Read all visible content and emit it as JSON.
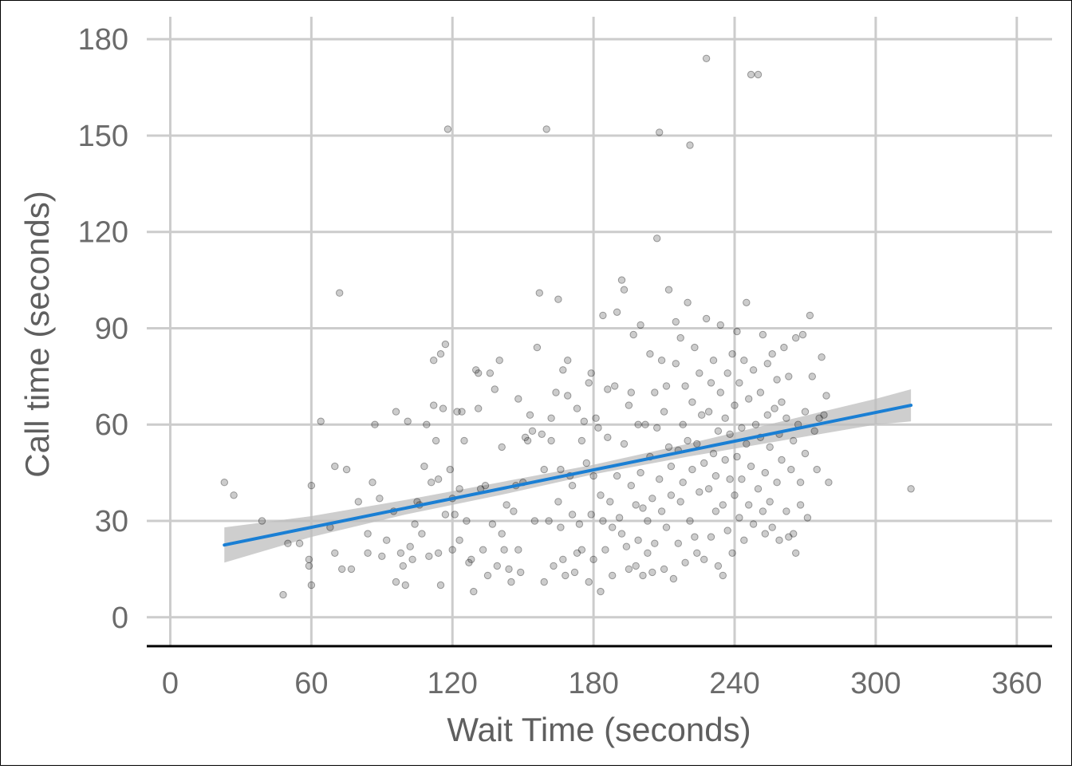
{
  "chart_data": {
    "type": "scatter",
    "xlabel": "Wait Time (seconds)",
    "ylabel": "Call time (seconds)",
    "xlim": [
      -10,
      375
    ],
    "ylim": [
      -9,
      187
    ],
    "x_ticks": [
      0,
      60,
      120,
      180,
      240,
      300,
      360
    ],
    "y_ticks": [
      0,
      30,
      60,
      90,
      120,
      150,
      180
    ],
    "grid": true,
    "point_color": "#000000",
    "point_alpha": 0.2,
    "trend_color": "#1a7fd4",
    "band_color": "#bdbdbd",
    "trend": {
      "type": "linear",
      "x": [
        23,
        315
      ],
      "y": [
        22.5,
        66
      ]
    },
    "confidence_band": {
      "x": [
        23,
        60,
        100,
        140,
        180,
        220,
        260,
        300,
        315
      ],
      "lower": [
        17,
        25,
        32,
        38,
        44.5,
        50,
        55,
        60,
        61
      ],
      "upper": [
        28,
        31.5,
        36.5,
        42,
        47.5,
        54,
        61,
        68,
        71
      ]
    },
    "points": [
      [
        23,
        42
      ],
      [
        27,
        38
      ],
      [
        39,
        30
      ],
      [
        48,
        7
      ],
      [
        50,
        23
      ],
      [
        55,
        23
      ],
      [
        59,
        18
      ],
      [
        59,
        16
      ],
      [
        60,
        10
      ],
      [
        60,
        41
      ],
      [
        64,
        61
      ],
      [
        68,
        28
      ],
      [
        70,
        20
      ],
      [
        70,
        47
      ],
      [
        72,
        101
      ],
      [
        73,
        15
      ],
      [
        75,
        46
      ],
      [
        77,
        15
      ],
      [
        80,
        36
      ],
      [
        84,
        20
      ],
      [
        84,
        26
      ],
      [
        86,
        42
      ],
      [
        87,
        60
      ],
      [
        89,
        37
      ],
      [
        90,
        19
      ],
      [
        92,
        24
      ],
      [
        95,
        33
      ],
      [
        96,
        11
      ],
      [
        96,
        64
      ],
      [
        98,
        20
      ],
      [
        99,
        16
      ],
      [
        100,
        10
      ],
      [
        101,
        61
      ],
      [
        102,
        22
      ],
      [
        103,
        18
      ],
      [
        104,
        29
      ],
      [
        105,
        36
      ],
      [
        106,
        35
      ],
      [
        107,
        26
      ],
      [
        108,
        47
      ],
      [
        109,
        60
      ],
      [
        110,
        19
      ],
      [
        111,
        42
      ],
      [
        112,
        80
      ],
      [
        112,
        66
      ],
      [
        113,
        55
      ],
      [
        114,
        43
      ],
      [
        114,
        20
      ],
      [
        115,
        10
      ],
      [
        115,
        82
      ],
      [
        116,
        65
      ],
      [
        117,
        32
      ],
      [
        117,
        85
      ],
      [
        118,
        152
      ],
      [
        119,
        46
      ],
      [
        120,
        21
      ],
      [
        120,
        37
      ],
      [
        121,
        32
      ],
      [
        122,
        64
      ],
      [
        123,
        40
      ],
      [
        123,
        24
      ],
      [
        124,
        64
      ],
      [
        125,
        55
      ],
      [
        126,
        30
      ],
      [
        127,
        17
      ],
      [
        128,
        18
      ],
      [
        129,
        8
      ],
      [
        130,
        77
      ],
      [
        131,
        76
      ],
      [
        131,
        65
      ],
      [
        132,
        40
      ],
      [
        133,
        21
      ],
      [
        134,
        41
      ],
      [
        135,
        13
      ],
      [
        136,
        76
      ],
      [
        137,
        29
      ],
      [
        138,
        71
      ],
      [
        139,
        16
      ],
      [
        140,
        80
      ],
      [
        141,
        53
      ],
      [
        141,
        26
      ],
      [
        142,
        21
      ],
      [
        143,
        35
      ],
      [
        144,
        15
      ],
      [
        145,
        11
      ],
      [
        146,
        33
      ],
      [
        147,
        41
      ],
      [
        148,
        21
      ],
      [
        148,
        68
      ],
      [
        149,
        14
      ],
      [
        150,
        42
      ],
      [
        151,
        56
      ],
      [
        152,
        55
      ],
      [
        153,
        63
      ],
      [
        154,
        58
      ],
      [
        155,
        30
      ],
      [
        156,
        84
      ],
      [
        157,
        101
      ],
      [
        158,
        57
      ],
      [
        159,
        46
      ],
      [
        159,
        11
      ],
      [
        160,
        152
      ],
      [
        161,
        30
      ],
      [
        162,
        55
      ],
      [
        162,
        62
      ],
      [
        163,
        16
      ],
      [
        164,
        70
      ],
      [
        165,
        36
      ],
      [
        165,
        99
      ],
      [
        166,
        28
      ],
      [
        166,
        46
      ],
      [
        167,
        18
      ],
      [
        167,
        77
      ],
      [
        168,
        13
      ],
      [
        169,
        80
      ],
      [
        169,
        69
      ],
      [
        170,
        44
      ],
      [
        171,
        41
      ],
      [
        171,
        32
      ],
      [
        172,
        14
      ],
      [
        173,
        20
      ],
      [
        173,
        65
      ],
      [
        174,
        29
      ],
      [
        175,
        21
      ],
      [
        175,
        55
      ],
      [
        176,
        61
      ],
      [
        177,
        48
      ],
      [
        178,
        73
      ],
      [
        178,
        11
      ],
      [
        179,
        76
      ],
      [
        179,
        32
      ],
      [
        180,
        44
      ],
      [
        180,
        18
      ],
      [
        181,
        62
      ],
      [
        182,
        59
      ],
      [
        183,
        38
      ],
      [
        183,
        8
      ],
      [
        184,
        94
      ],
      [
        184,
        30
      ],
      [
        185,
        21
      ],
      [
        186,
        71
      ],
      [
        186,
        56
      ],
      [
        187,
        36
      ],
      [
        188,
        28
      ],
      [
        188,
        13
      ],
      [
        189,
        72
      ],
      [
        190,
        44
      ],
      [
        190,
        95
      ],
      [
        191,
        31
      ],
      [
        192,
        26
      ],
      [
        192,
        105
      ],
      [
        193,
        102
      ],
      [
        193,
        54
      ],
      [
        194,
        22
      ],
      [
        195,
        66
      ],
      [
        195,
        15
      ],
      [
        196,
        70
      ],
      [
        196,
        41
      ],
      [
        197,
        88
      ],
      [
        198,
        16
      ],
      [
        198,
        35
      ],
      [
        199,
        60
      ],
      [
        199,
        24
      ],
      [
        200,
        45
      ],
      [
        200,
        91
      ],
      [
        201,
        34
      ],
      [
        201,
        13
      ],
      [
        202,
        60
      ],
      [
        203,
        20
      ],
      [
        203,
        30
      ],
      [
        204,
        82
      ],
      [
        204,
        50
      ],
      [
        205,
        37
      ],
      [
        205,
        14
      ],
      [
        206,
        70
      ],
      [
        206,
        23
      ],
      [
        207,
        118
      ],
      [
        207,
        59
      ],
      [
        208,
        151
      ],
      [
        208,
        43
      ],
      [
        209,
        33
      ],
      [
        209,
        80
      ],
      [
        210,
        15
      ],
      [
        210,
        64
      ],
      [
        211,
        28
      ],
      [
        211,
        72
      ],
      [
        212,
        53
      ],
      [
        212,
        102
      ],
      [
        213,
        47
      ],
      [
        213,
        38
      ],
      [
        214,
        12
      ],
      [
        215,
        79
      ],
      [
        215,
        92
      ],
      [
        216,
        52
      ],
      [
        216,
        23
      ],
      [
        217,
        36
      ],
      [
        217,
        87
      ],
      [
        218,
        60
      ],
      [
        218,
        42
      ],
      [
        219,
        72
      ],
      [
        219,
        17
      ],
      [
        220,
        55
      ],
      [
        220,
        98
      ],
      [
        221,
        30
      ],
      [
        221,
        147
      ],
      [
        222,
        67
      ],
      [
        222,
        46
      ],
      [
        223,
        84
      ],
      [
        223,
        25
      ],
      [
        224,
        54
      ],
      [
        224,
        20
      ],
      [
        225,
        76
      ],
      [
        225,
        39
      ],
      [
        226,
        63
      ],
      [
        227,
        48
      ],
      [
        227,
        18
      ],
      [
        228,
        174
      ],
      [
        228,
        93
      ],
      [
        229,
        40
      ],
      [
        229,
        64
      ],
      [
        230,
        25
      ],
      [
        230,
        73
      ],
      [
        231,
        51
      ],
      [
        231,
        80
      ],
      [
        232,
        33
      ],
      [
        232,
        44
      ],
      [
        233,
        58
      ],
      [
        233,
        16
      ],
      [
        234,
        91
      ],
      [
        234,
        70
      ],
      [
        235,
        35
      ],
      [
        235,
        13
      ],
      [
        236,
        62
      ],
      [
        236,
        49
      ],
      [
        237,
        76
      ],
      [
        237,
        27
      ],
      [
        238,
        43
      ],
      [
        238,
        57
      ],
      [
        239,
        82
      ],
      [
        239,
        20
      ],
      [
        240,
        66
      ],
      [
        240,
        38
      ],
      [
        241,
        50
      ],
      [
        241,
        89
      ],
      [
        242,
        31
      ],
      [
        242,
        73
      ],
      [
        243,
        43
      ],
      [
        243,
        59
      ],
      [
        244,
        80
      ],
      [
        244,
        24
      ],
      [
        245,
        98
      ],
      [
        245,
        54
      ],
      [
        246,
        35
      ],
      [
        246,
        68
      ],
      [
        247,
        169
      ],
      [
        247,
        47
      ],
      [
        248,
        77
      ],
      [
        248,
        29
      ],
      [
        249,
        60
      ],
      [
        250,
        169
      ],
      [
        250,
        40
      ],
      [
        251,
        56
      ],
      [
        251,
        70
      ],
      [
        252,
        88
      ],
      [
        252,
        33
      ],
      [
        253,
        45
      ],
      [
        253,
        26
      ],
      [
        254,
        63
      ],
      [
        254,
        79
      ],
      [
        255,
        53
      ],
      [
        255,
        36
      ],
      [
        256,
        82
      ],
      [
        256,
        28
      ],
      [
        257,
        65
      ],
      [
        258,
        42
      ],
      [
        258,
        74
      ],
      [
        259,
        57
      ],
      [
        259,
        24
      ],
      [
        260,
        67
      ],
      [
        260,
        49
      ],
      [
        261,
        84
      ],
      [
        262,
        33
      ],
      [
        262,
        62
      ],
      [
        263,
        25
      ],
      [
        263,
        75
      ],
      [
        264,
        46
      ],
      [
        265,
        55
      ],
      [
        265,
        26
      ],
      [
        266,
        87
      ],
      [
        266,
        20
      ],
      [
        267,
        60
      ],
      [
        268,
        42
      ],
      [
        268,
        35
      ],
      [
        269,
        88
      ],
      [
        270,
        64
      ],
      [
        270,
        51
      ],
      [
        271,
        31
      ],
      [
        272,
        94
      ],
      [
        273,
        75
      ],
      [
        274,
        58
      ],
      [
        275,
        46
      ],
      [
        276,
        62
      ],
      [
        277,
        81
      ],
      [
        278,
        63
      ],
      [
        279,
        69
      ],
      [
        280,
        42
      ],
      [
        315,
        40
      ]
    ]
  }
}
